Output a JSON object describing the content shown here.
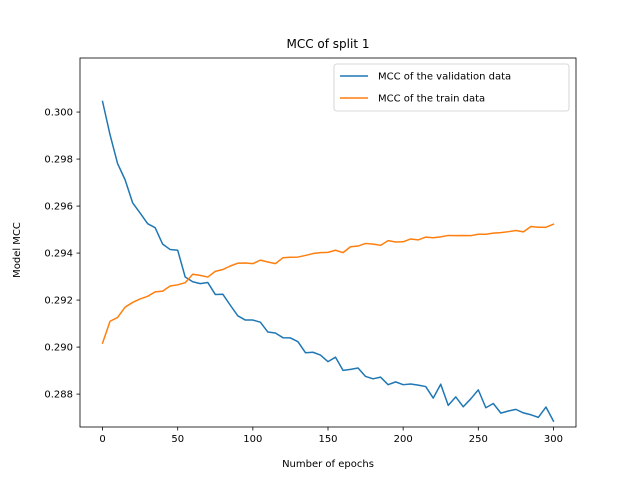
{
  "chart_data": {
    "type": "line",
    "title": "MCC of split 1",
    "xlabel": "Number of epochs",
    "ylabel": "Model MCC",
    "xlim": [
      -15,
      315
    ],
    "ylim": [
      0.2866,
      0.3023
    ],
    "xticks": [
      0,
      50,
      100,
      150,
      200,
      250,
      300
    ],
    "yticks": [
      0.288,
      0.29,
      0.292,
      0.294,
      0.296,
      0.298,
      0.3
    ],
    "grid": false,
    "legend_position": "top-right",
    "x": [
      0,
      5,
      10,
      15,
      20,
      25,
      30,
      35,
      40,
      45,
      50,
      55,
      60,
      65,
      70,
      75,
      80,
      85,
      90,
      95,
      100,
      105,
      110,
      115,
      120,
      125,
      130,
      135,
      140,
      145,
      150,
      155,
      160,
      165,
      170,
      175,
      180,
      185,
      190,
      195,
      200,
      205,
      210,
      215,
      220,
      225,
      230,
      235,
      240,
      245,
      250,
      255,
      260,
      265,
      270,
      275,
      280,
      285,
      290,
      295,
      300
    ],
    "series": [
      {
        "name": "MCC of the validation data",
        "color": "#1f77b4",
        "values": [
          0.30045,
          0.29903,
          0.29781,
          0.29712,
          0.29614,
          0.2957,
          0.29525,
          0.29508,
          0.29438,
          0.29415,
          0.29412,
          0.29298,
          0.29278,
          0.2927,
          0.29275,
          0.29224,
          0.29225,
          0.29178,
          0.29133,
          0.29115,
          0.29115,
          0.29106,
          0.29064,
          0.2906,
          0.2904,
          0.29039,
          0.29023,
          0.28976,
          0.28978,
          0.28966,
          0.28938,
          0.28957,
          0.28901,
          0.28905,
          0.28911,
          0.28875,
          0.28865,
          0.28872,
          0.2884,
          0.28852,
          0.2884,
          0.28843,
          0.28838,
          0.28832,
          0.28783,
          0.28842,
          0.28752,
          0.28788,
          0.28746,
          0.2878,
          0.28818,
          0.28742,
          0.2876,
          0.28719,
          0.28728,
          0.28735,
          0.2872,
          0.28712,
          0.28701,
          0.28745,
          0.28685
        ]
      },
      {
        "name": "MCC of the train data",
        "color": "#ff7f0e",
        "values": [
          0.29017,
          0.2911,
          0.29126,
          0.2917,
          0.2919,
          0.29205,
          0.29216,
          0.29235,
          0.29238,
          0.2926,
          0.29265,
          0.29274,
          0.2931,
          0.29305,
          0.29298,
          0.29322,
          0.2933,
          0.29345,
          0.29357,
          0.29358,
          0.29355,
          0.2937,
          0.29362,
          0.29355,
          0.2938,
          0.29382,
          0.29383,
          0.2939,
          0.29398,
          0.29402,
          0.29403,
          0.29412,
          0.29402,
          0.29427,
          0.2943,
          0.29441,
          0.29438,
          0.29433,
          0.29453,
          0.29447,
          0.29448,
          0.2946,
          0.29456,
          0.29468,
          0.29465,
          0.29469,
          0.29475,
          0.29474,
          0.29475,
          0.29474,
          0.2948,
          0.2948,
          0.29485,
          0.29487,
          0.29491,
          0.29496,
          0.2949,
          0.29513,
          0.2951,
          0.2951,
          0.29523
        ]
      }
    ]
  }
}
